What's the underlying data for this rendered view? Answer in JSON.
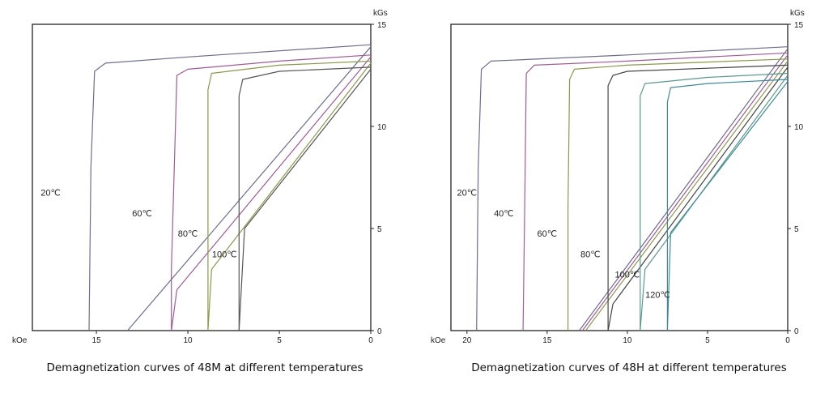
{
  "chart_data": [
    {
      "type": "line",
      "title": "Demagnetization curves of 48M at different temperatures",
      "xlabel": "kOe",
      "ylabel": "kGs",
      "x_reversed": true,
      "xlim": [
        0,
        18.5
      ],
      "ylim": [
        0,
        15
      ],
      "xticks": [
        15,
        10,
        5,
        0
      ],
      "yticks": [
        0,
        5,
        10,
        15
      ],
      "series": [
        {
          "name": "20℃",
          "color": "#6d6d8e",
          "label_at": [
            17.5,
            6.6
          ],
          "b_curve": [
            [
              0,
              14.0
            ],
            [
              10,
              13.4
            ],
            [
              14.5,
              13.1
            ],
            [
              15.1,
              12.7
            ],
            [
              15.3,
              8.0
            ],
            [
              15.4,
              0
            ]
          ],
          "recoil": [
            [
              0,
              13.9
            ],
            [
              13.3,
              0
            ]
          ]
        },
        {
          "name": "60℃",
          "color": "#a05a9a",
          "label_at": [
            12.5,
            5.6
          ],
          "b_curve": [
            [
              0,
              13.5
            ],
            [
              5,
              13.2
            ],
            [
              10,
              12.8
            ],
            [
              10.6,
              12.5
            ],
            [
              10.9,
              3.0
            ],
            [
              10.9,
              0
            ]
          ],
          "recoil": [
            [
              0,
              13.4
            ],
            [
              10.6,
              2.0
            ],
            [
              10.9,
              0
            ]
          ]
        },
        {
          "name": "80℃",
          "color": "#8a9a4a",
          "label_at": [
            10.0,
            4.6
          ],
          "b_curve": [
            [
              0,
              13.2
            ],
            [
              5,
              13.0
            ],
            [
              8.7,
              12.6
            ],
            [
              8.9,
              11.8
            ],
            [
              8.9,
              0
            ]
          ],
          "recoil": [
            [
              0,
              13.1
            ],
            [
              8.7,
              3.0
            ],
            [
              8.9,
              0
            ]
          ]
        },
        {
          "name": "100℃",
          "color": "#555555",
          "label_at": [
            8.0,
            3.6
          ],
          "b_curve": [
            [
              0,
              12.9
            ],
            [
              5,
              12.7
            ],
            [
              7.0,
              12.3
            ],
            [
              7.2,
              11.5
            ],
            [
              7.2,
              0
            ]
          ],
          "recoil": [
            [
              0,
              12.8
            ],
            [
              6.9,
              5.0
            ],
            [
              7.2,
              0
            ]
          ]
        }
      ]
    },
    {
      "type": "line",
      "title": "Demagnetization curves of 48H at different temperatures",
      "xlabel": "kOe",
      "ylabel": "kGs",
      "x_reversed": true,
      "xlim": [
        0,
        21
      ],
      "ylim": [
        0,
        15
      ],
      "xticks": [
        20,
        15,
        10,
        5,
        0
      ],
      "yticks": [
        0,
        5,
        10,
        15
      ],
      "series": [
        {
          "name": "20℃",
          "color": "#6d6d8e",
          "label_at": [
            20.0,
            6.6
          ],
          "b_curve": [
            [
              0,
              13.9
            ],
            [
              10,
              13.5
            ],
            [
              18.5,
              13.2
            ],
            [
              19.1,
              12.8
            ],
            [
              19.3,
              8.0
            ],
            [
              19.4,
              0
            ]
          ],
          "recoil": [
            [
              0,
              13.8
            ],
            [
              13.0,
              0
            ]
          ]
        },
        {
          "name": "40℃",
          "color": "#a05a9a",
          "label_at": [
            17.7,
            5.6
          ],
          "b_curve": [
            [
              0,
              13.6
            ],
            [
              10,
              13.2
            ],
            [
              15.8,
              13.0
            ],
            [
              16.3,
              12.6
            ],
            [
              16.4,
              6.0
            ],
            [
              16.5,
              0
            ]
          ],
          "recoil": [
            [
              0,
              13.5
            ],
            [
              12.8,
              0
            ]
          ]
        },
        {
          "name": "60℃",
          "color": "#8a9a4a",
          "label_at": [
            15.0,
            4.6
          ],
          "b_curve": [
            [
              0,
              13.3
            ],
            [
              10,
              13.0
            ],
            [
              13.3,
              12.8
            ],
            [
              13.6,
              12.3
            ],
            [
              13.7,
              6.0
            ],
            [
              13.7,
              0
            ]
          ],
          "recoil": [
            [
              0,
              13.2
            ],
            [
              12.6,
              0
            ]
          ]
        },
        {
          "name": "80℃",
          "color": "#444444",
          "label_at": [
            12.3,
            3.6
          ],
          "b_curve": [
            [
              0,
              13.0
            ],
            [
              10,
              12.7
            ],
            [
              10.9,
              12.5
            ],
            [
              11.2,
              12.0
            ],
            [
              11.2,
              0
            ]
          ],
          "recoil": [
            [
              0,
              12.9
            ],
            [
              10.9,
              1.3
            ],
            [
              11.2,
              0
            ]
          ]
        },
        {
          "name": "100℃",
          "color": "#5a9a8a",
          "label_at": [
            10.0,
            2.6
          ],
          "b_curve": [
            [
              0,
              12.6
            ],
            [
              5,
              12.4
            ],
            [
              8.9,
              12.1
            ],
            [
              9.2,
              11.5
            ],
            [
              9.2,
              0
            ]
          ],
          "recoil": [
            [
              0,
              12.5
            ],
            [
              8.9,
              3.0
            ],
            [
              9.2,
              0
            ]
          ]
        },
        {
          "name": "120℃",
          "color": "#3d8a9a",
          "label_at": [
            8.1,
            1.6
          ],
          "b_curve": [
            [
              0,
              12.3
            ],
            [
              5,
              12.1
            ],
            [
              7.3,
              11.9
            ],
            [
              7.5,
              11.2
            ],
            [
              7.5,
              0
            ]
          ],
          "recoil": [
            [
              0,
              12.2
            ],
            [
              7.3,
              4.8
            ],
            [
              7.5,
              0
            ]
          ]
        }
      ]
    }
  ]
}
